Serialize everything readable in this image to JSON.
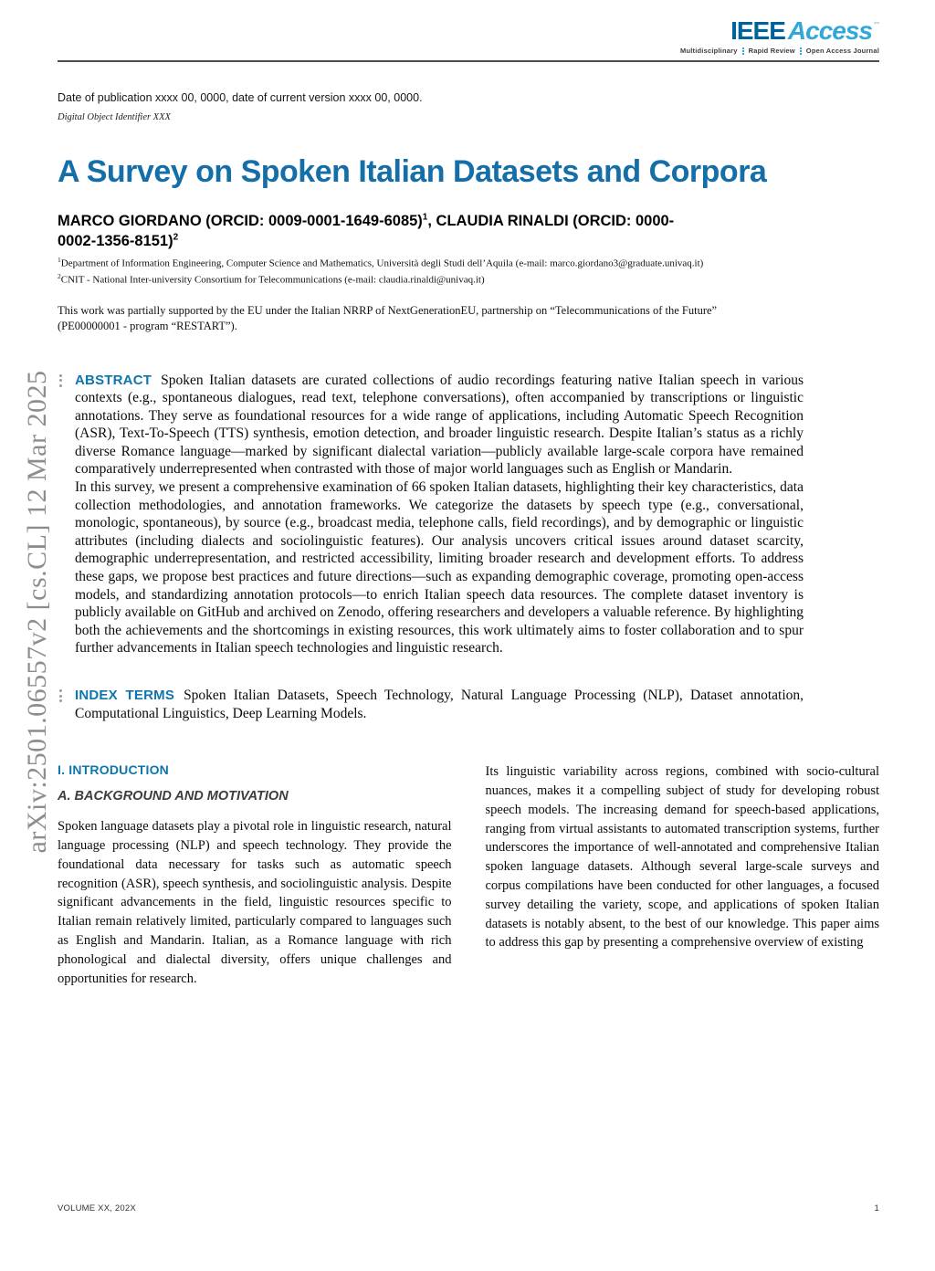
{
  "accent": "#146ea8",
  "logo": {
    "ieee": "IEEE",
    "access": "Access",
    "tagline": [
      "Multidisciplinary",
      "Rapid Review",
      "Open Access Journal"
    ]
  },
  "pub_info": {
    "date_line": "Date of publication xxxx 00, 0000, date of current version xxxx 00, 0000.",
    "doi_line": "Digital Object Identifier XXX"
  },
  "title": "A Survey on Spoken Italian Datasets and Corpora",
  "authors": {
    "a1_name": "MARCO GIORDANO (ORCID: 0009-0001-1649-6085)",
    "a1_sup": "1",
    "sep": ", ",
    "a2_name": "CLAUDIA RINALDI (ORCID: 0000-0002-1356-8151)",
    "a2_sup": "2"
  },
  "affiliations": [
    {
      "sup": "1",
      "text": "Department of Information Engineering, Computer Science and Mathematics, Università degli Studi dell’Aquila (e-mail: marco.giordano3@graduate.univaq.it)"
    },
    {
      "sup": "2",
      "text": "CNIT - National Inter-university Consortium for Telecommunications (e-mail: claudia.rinaldi@univaq.it)"
    }
  ],
  "funding": "This work was partially supported by the EU under the Italian NRRP of NextGenerationEU, partnership on “Telecommunications of the Future” (PE00000001 - program “RESTART”).",
  "abstract": {
    "label": "ABSTRACT",
    "p1": "Spoken Italian datasets are curated collections of audio recordings featuring native Italian speech in various contexts (e.g., spontaneous dialogues, read text, telephone conversations), often accompanied by transcriptions or linguistic annotations. They serve as foundational resources for a wide range of applications, including Automatic Speech Recognition (ASR), Text-To-Speech (TTS) synthesis, emotion detection, and broader linguistic research. Despite Italian’s status as a richly diverse Romance language—marked by significant dialectal variation—publicly available large-scale corpora have remained comparatively underrepresented when contrasted with those of major world languages such as English or Mandarin.",
    "p2": "In this survey, we present a comprehensive examination of 66 spoken Italian datasets, highlighting their key characteristics, data collection methodologies, and annotation frameworks. We categorize the datasets by speech type (e.g., conversational, monologic, spontaneous), by source (e.g., broadcast media, telephone calls, field recordings), and by demographic or linguistic attributes (including dialects and sociolinguistic features). Our analysis uncovers critical issues around dataset scarcity, demographic underrepresentation, and restricted accessibility, limiting broader research and development efforts. To address these gaps, we propose best practices and future directions—such as expanding demographic coverage, promoting open-access models, and standardizing annotation protocols—to enrich Italian speech data resources. The complete dataset inventory is publicly available on GitHub and archived on Zenodo, offering researchers and developers a valuable reference. By highlighting both the achievements and the shortcomings in existing resources, this work ultimately aims to foster collaboration and to spur further advancements in Italian speech technologies and linguistic research."
  },
  "index_terms": {
    "label": "INDEX TERMS",
    "text": "Spoken Italian Datasets, Speech Technology, Natural Language Processing (NLP), Dataset annotation, Computational Linguistics, Deep Learning Models."
  },
  "body": {
    "section_heading": "I. INTRODUCTION",
    "sub_heading": "A. BACKGROUND AND MOTIVATION",
    "left_paragraph": "Spoken language datasets play a pivotal role in linguistic research, natural language processing (NLP) and speech technology. They provide the foundational data necessary for tasks such as automatic speech recognition (ASR), speech synthesis, and sociolinguistic analysis. Despite significant advancements in the field, linguistic resources specific to Italian remain relatively limited, particularly compared to languages such as English and Mandarin. Italian, as a Romance language with rich phonological and dialectal diversity, offers unique challenges and opportunities for research.",
    "right_paragraph": "Its linguistic variability across regions, combined with socio-cultural nuances, makes it a compelling subject of study for developing robust speech models. The increasing demand for speech-based applications, ranging from virtual assistants to automated transcription systems, further underscores the importance of well-annotated and comprehensive Italian spoken language datasets. Although several large-scale surveys and corpus compilations have been conducted for other languages, a focused survey detailing the variety, scope, and applications of spoken Italian datasets is notably absent, to the best of our knowledge. This paper aims to address this gap by presenting a comprehensive overview of existing"
  },
  "footer": {
    "volume": "VOLUME XX, 202X",
    "page": "1"
  },
  "watermark": "arXiv:2501.06557v2  [cs.CL]  12 Mar 2025"
}
